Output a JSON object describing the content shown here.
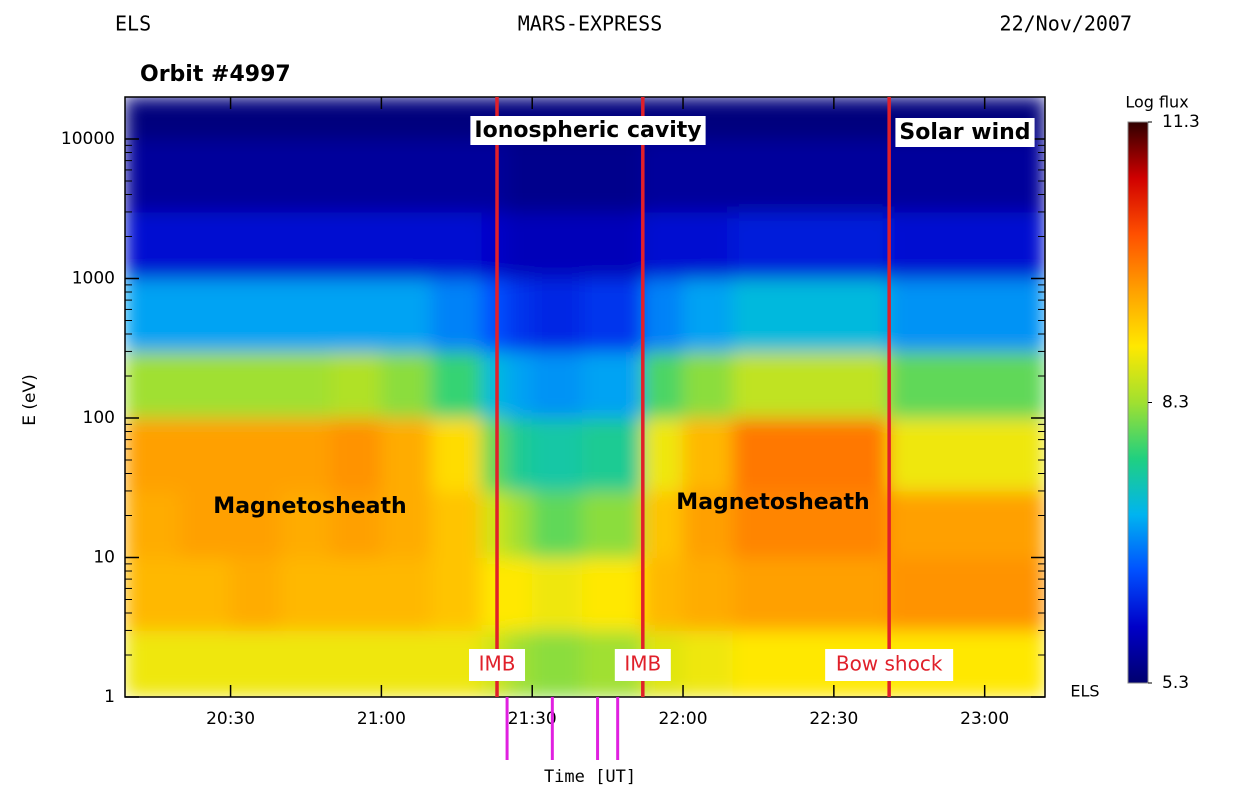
{
  "chart_data": {
    "type": "spectrogram",
    "header": {
      "left": "ELS",
      "center": "MARS-EXPRESS",
      "right": "22/Nov/2007"
    },
    "title": "Orbit #4997",
    "xlabel": "Time [UT]",
    "ylabel": "E (eV)",
    "instrument_label": "ELS",
    "xlim": [
      "20:09",
      "23:12"
    ],
    "xticks": [
      "20:30",
      "21:00",
      "21:30",
      "22:00",
      "22:30",
      "23:00"
    ],
    "ylim": [
      1,
      20000
    ],
    "yticks": [
      1,
      10,
      100,
      1000,
      10000
    ],
    "ylog": true,
    "colorbar": {
      "label": "Log flux",
      "lim": [
        5.3,
        11.3
      ],
      "ticks": [
        5.3,
        8.3,
        11.3
      ],
      "colormap": [
        "#00006e",
        "#0000c8",
        "#0050ff",
        "#00b4f0",
        "#20d080",
        "#a0e030",
        "#ffe800",
        "#ffa000",
        "#ff5000",
        "#d00000",
        "#300000"
      ]
    },
    "heatmap": {
      "xbins": [
        "20:09",
        "20:20",
        "20:30",
        "20:40",
        "20:50",
        "21:00",
        "21:10",
        "21:20",
        "21:25",
        "21:30",
        "21:40",
        "21:52",
        "22:00",
        "22:10",
        "22:20",
        "22:30",
        "22:41",
        "22:50",
        "23:00",
        "23:12"
      ],
      "ybins": [
        1,
        3,
        10,
        30,
        100,
        300,
        1000,
        3000,
        10000,
        20000
      ],
      "values": [
        [
          8.8,
          9.3,
          9.4,
          9.5,
          8.3,
          7.0,
          6.0,
          5.6,
          5.4
        ],
        [
          8.8,
          9.3,
          9.5,
          9.5,
          8.3,
          7.0,
          6.0,
          5.6,
          5.4
        ],
        [
          8.8,
          9.4,
          9.5,
          9.5,
          8.3,
          7.0,
          6.0,
          5.6,
          5.4
        ],
        [
          8.8,
          9.3,
          9.4,
          9.5,
          8.3,
          7.0,
          6.0,
          5.6,
          5.4
        ],
        [
          8.8,
          9.3,
          9.5,
          9.6,
          8.4,
          7.0,
          6.0,
          5.6,
          5.4
        ],
        [
          8.8,
          9.3,
          9.4,
          9.4,
          8.2,
          7.0,
          6.0,
          5.6,
          5.4
        ],
        [
          8.8,
          9.2,
          9.2,
          9.0,
          7.8,
          6.8,
          6.0,
          5.6,
          5.4
        ],
        [
          8.6,
          8.9,
          8.6,
          8.0,
          7.2,
          6.5,
          5.9,
          5.6,
          5.4
        ],
        [
          8.3,
          8.9,
          8.3,
          7.6,
          7.0,
          6.3,
          5.8,
          5.5,
          5.4
        ],
        [
          8.2,
          8.8,
          8.0,
          7.5,
          6.9,
          6.2,
          5.8,
          5.5,
          5.4
        ],
        [
          8.3,
          8.9,
          8.2,
          7.6,
          7.0,
          6.3,
          5.8,
          5.5,
          5.4
        ],
        [
          8.7,
          9.3,
          9.2,
          8.8,
          7.9,
          6.8,
          6.0,
          5.6,
          5.4
        ],
        [
          8.8,
          9.4,
          9.5,
          9.3,
          8.2,
          7.0,
          6.0,
          5.6,
          5.4
        ],
        [
          8.9,
          9.5,
          9.7,
          9.8,
          8.5,
          7.2,
          6.1,
          5.6,
          5.4
        ],
        [
          8.9,
          9.5,
          9.7,
          9.8,
          8.5,
          7.2,
          6.1,
          5.6,
          5.4
        ],
        [
          8.9,
          9.5,
          9.7,
          9.8,
          8.5,
          7.2,
          6.1,
          5.6,
          5.4
        ],
        [
          8.9,
          9.6,
          9.5,
          8.8,
          8.0,
          6.9,
          6.0,
          5.6,
          5.4
        ],
        [
          8.9,
          9.6,
          9.5,
          8.8,
          8.0,
          6.9,
          6.0,
          5.6,
          5.4
        ],
        [
          8.9,
          9.6,
          9.5,
          8.8,
          8.0,
          6.9,
          6.0,
          5.6,
          5.4
        ]
      ]
    },
    "boundaries": [
      {
        "name": "IMB",
        "x": "21:23",
        "color": "#e0202a"
      },
      {
        "name": "IMB",
        "x": "21:52",
        "color": "#e0202a"
      },
      {
        "name": "Bow shock",
        "x": "22:41",
        "color": "#e0202a"
      }
    ],
    "regions": [
      "Ionospheric cavity",
      "Solar wind",
      "Magnetosheath",
      "Magnetosheath"
    ],
    "markers": {
      "color": "#e020e0",
      "x": [
        "21:25",
        "21:34",
        "21:43",
        "21:47"
      ]
    }
  }
}
